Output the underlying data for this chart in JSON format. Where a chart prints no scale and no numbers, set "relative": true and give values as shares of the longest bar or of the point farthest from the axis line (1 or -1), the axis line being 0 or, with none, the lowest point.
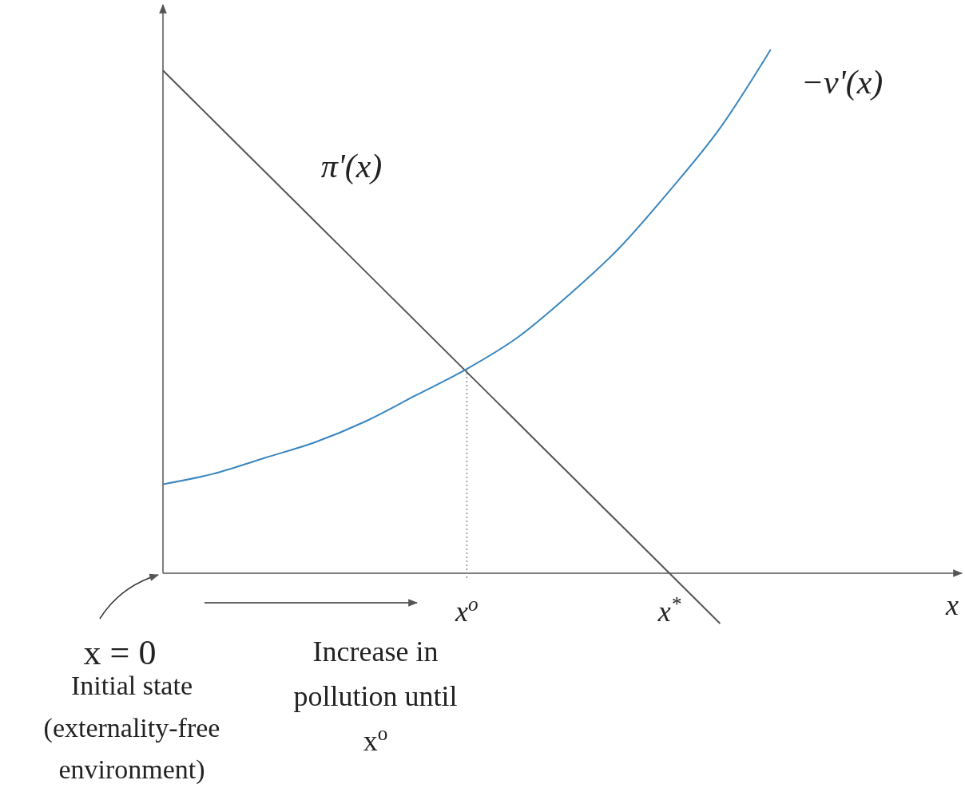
{
  "chart_data": {
    "type": "line",
    "relative": true,
    "categories": [
      null,
      null,
      null,
      null,
      null,
      null,
      "x$^{o}$",
      null,
      null,
      null,
      "x$^{*}$",
      null,
      null
    ],
    "series": [
      {
        "name": "π'(x)",
        "color": "#555555",
        "values": [
          0.96,
          0.864,
          0.768,
          0.672,
          0.576,
          0.48,
          0.384,
          0.288,
          0.192,
          0.096,
          0,
          -0.096,
          null
        ]
      },
      {
        "name": "−v'(x)",
        "color": "#3a86c0",
        "values": [
          0.17,
          0.19,
          0.22,
          0.25,
          0.29,
          0.34,
          0.39,
          0.45,
          0.53,
          0.62,
          0.73,
          0.85,
          1.0
        ]
      }
    ],
    "ref_lines": [
      {
        "axis": "x",
        "value": "x$^{o}$",
        "line_style": "dotted",
        "color": "#888888"
      }
    ],
    "annotations": [
      "x",
      "x = 0",
      "Initial state (externality-free environment)",
      "Increase in pollution until x$^{o}$"
    ],
    "marker": "none",
    "line_style": "solid"
  }
}
